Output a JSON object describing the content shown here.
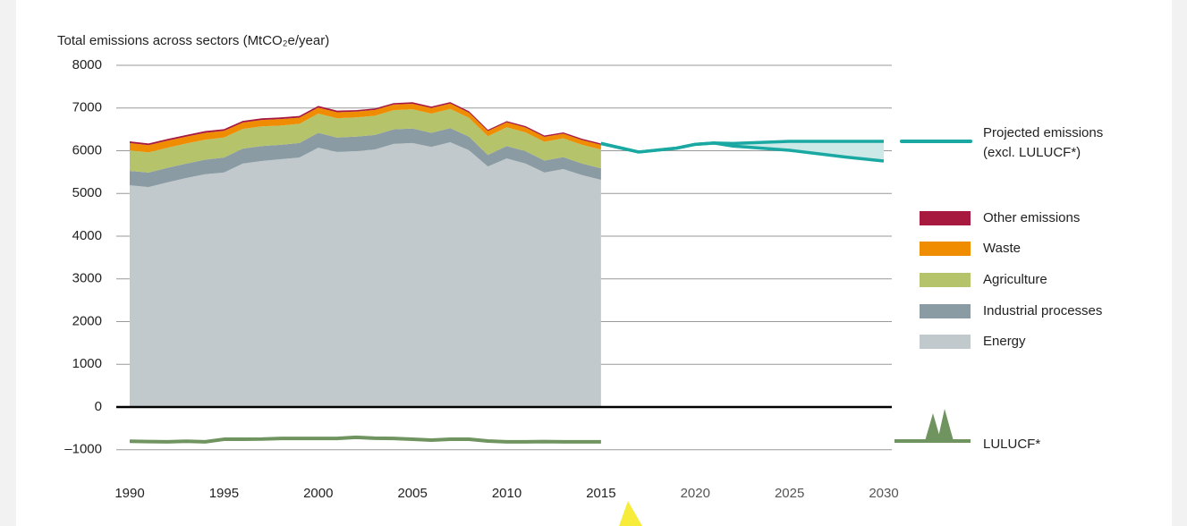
{
  "chart_data": {
    "type": "stacked-area",
    "ylabel": "Total emissions across sectors (MtCO₂e/year)",
    "x": [
      1990,
      1991,
      1992,
      1993,
      1994,
      1995,
      1996,
      1997,
      1998,
      1999,
      2000,
      2001,
      2002,
      2003,
      2004,
      2005,
      2006,
      2007,
      2008,
      2009,
      2010,
      2011,
      2012,
      2013,
      2014,
      2015
    ],
    "series": [
      {
        "name": "Energy",
        "color": "#c2c9cc",
        "values": [
          5190,
          5150,
          5260,
          5360,
          5450,
          5490,
          5700,
          5760,
          5800,
          5840,
          6070,
          5970,
          5990,
          6030,
          6160,
          6180,
          6090,
          6200,
          6010,
          5630,
          5820,
          5700,
          5490,
          5570,
          5430,
          5320
        ]
      },
      {
        "name": "Industrial processes",
        "color": "#8a9ba3",
        "values": [
          340,
          340,
          340,
          340,
          340,
          350,
          350,
          350,
          340,
          340,
          350,
          340,
          340,
          340,
          340,
          340,
          330,
          330,
          320,
          270,
          290,
          290,
          280,
          280,
          270,
          270
        ]
      },
      {
        "name": "Agriculture",
        "color": "#b5c36a",
        "values": [
          480,
          470,
          470,
          470,
          470,
          470,
          460,
          460,
          450,
          450,
          450,
          450,
          450,
          450,
          450,
          450,
          450,
          450,
          440,
          440,
          440,
          440,
          440,
          440,
          440,
          440
        ]
      },
      {
        "name": "Waste",
        "color": "#f08c00",
        "values": [
          170,
          170,
          165,
          160,
          160,
          155,
          150,
          150,
          150,
          145,
          140,
          140,
          135,
          135,
          130,
          130,
          130,
          125,
          120,
          120,
          115,
          115,
          115,
          110,
          110,
          110
        ]
      },
      {
        "name": "Other emissions",
        "color": "#a8193f",
        "values": [
          40,
          40,
          40,
          40,
          40,
          40,
          40,
          40,
          40,
          40,
          40,
          40,
          35,
          35,
          35,
          35,
          35,
          35,
          35,
          30,
          30,
          30,
          30,
          30,
          30,
          30
        ]
      }
    ],
    "lulucf": {
      "name": "LULUCF*",
      "color": "#6f9460",
      "values": [
        -800,
        -810,
        -815,
        -800,
        -815,
        -755,
        -755,
        -750,
        -735,
        -735,
        -735,
        -735,
        -710,
        -730,
        -735,
        -755,
        -775,
        -755,
        -755,
        -795,
        -815,
        -815,
        -810,
        -815,
        -815,
        -815
      ]
    },
    "projection": {
      "name": "Projected emissions\n(excl. LULUCF*)",
      "color": "#1aa8a3",
      "band_color": "#cde9e7",
      "x": [
        2015,
        2017,
        2019,
        2020,
        2021,
        2022,
        2025,
        2028,
        2030
      ],
      "upper": [
        6170,
        5970,
        6060,
        6150,
        6180,
        6170,
        6220,
        6220,
        6220
      ],
      "lower": [
        6170,
        5970,
        6060,
        6150,
        6180,
        6110,
        6010,
        5850,
        5760
      ]
    },
    "xlim": [
      1990,
      2030
    ],
    "xticks": [
      1990,
      1995,
      2000,
      2005,
      2010,
      2015,
      2020,
      2025,
      2030
    ],
    "ylim": [
      -1000,
      8000
    ],
    "yticks": [
      {
        "value": -1000,
        "label": "–1000"
      },
      0,
      1000,
      2000,
      3000,
      4000,
      5000,
      6000,
      7000,
      8000
    ],
    "grid": true
  }
}
